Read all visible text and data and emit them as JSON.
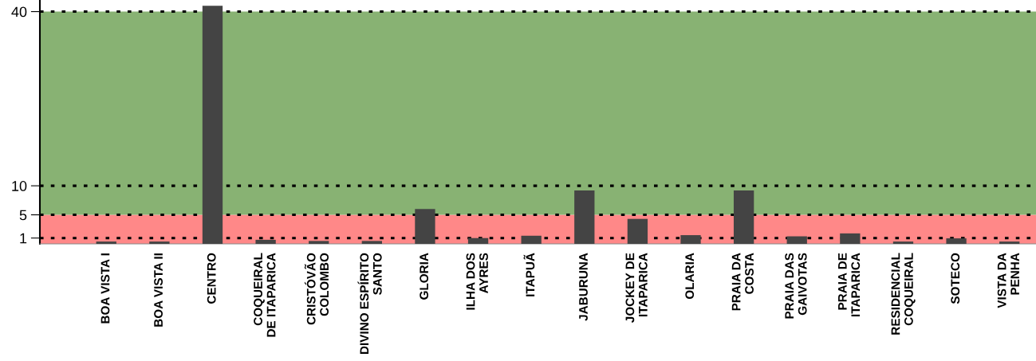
{
  "chart_data": {
    "type": "bar",
    "categories": [
      "BOA VISTA I",
      "BOA VISTA II",
      "CENTRO",
      "COQUEIRAL\nDE ITAPARICA",
      "CRISTÓVÃO\nCOLOMBO",
      "DIVINO ESPÍRITO\nSANTO",
      "GLORIA",
      "ILHA DOS\nAYRES",
      "ITAPUÃ",
      "JABURUNA",
      "JOCKEY DE\nITAPARICA",
      "OLARIA",
      "PRAIA DA\nCOSTA",
      "PRAIA DAS\nGAIVOTAS",
      "PRAIA DE\nITAPARICA",
      "RESIDENCIAL\nCOQUEIRAL",
      "SOTECO",
      "VISTA DA\nPENHA"
    ],
    "values": [
      0.4,
      0.4,
      41,
      0.7,
      0.5,
      0.5,
      6,
      1.0,
      1.4,
      9.2,
      4.3,
      1.5,
      9.2,
      1.3,
      1.8,
      0.4,
      0.95,
      0.4
    ],
    "color": "#444444",
    "ylim": [
      0,
      42
    ],
    "yticks": [
      1,
      5,
      10,
      40
    ],
    "grid": "y",
    "bands": [
      {
        "axis": "y",
        "from": 0,
        "to": 5,
        "color": "#ff8888"
      },
      {
        "axis": "y",
        "from": 5,
        "to": 40,
        "color": "#88b273"
      }
    ]
  }
}
